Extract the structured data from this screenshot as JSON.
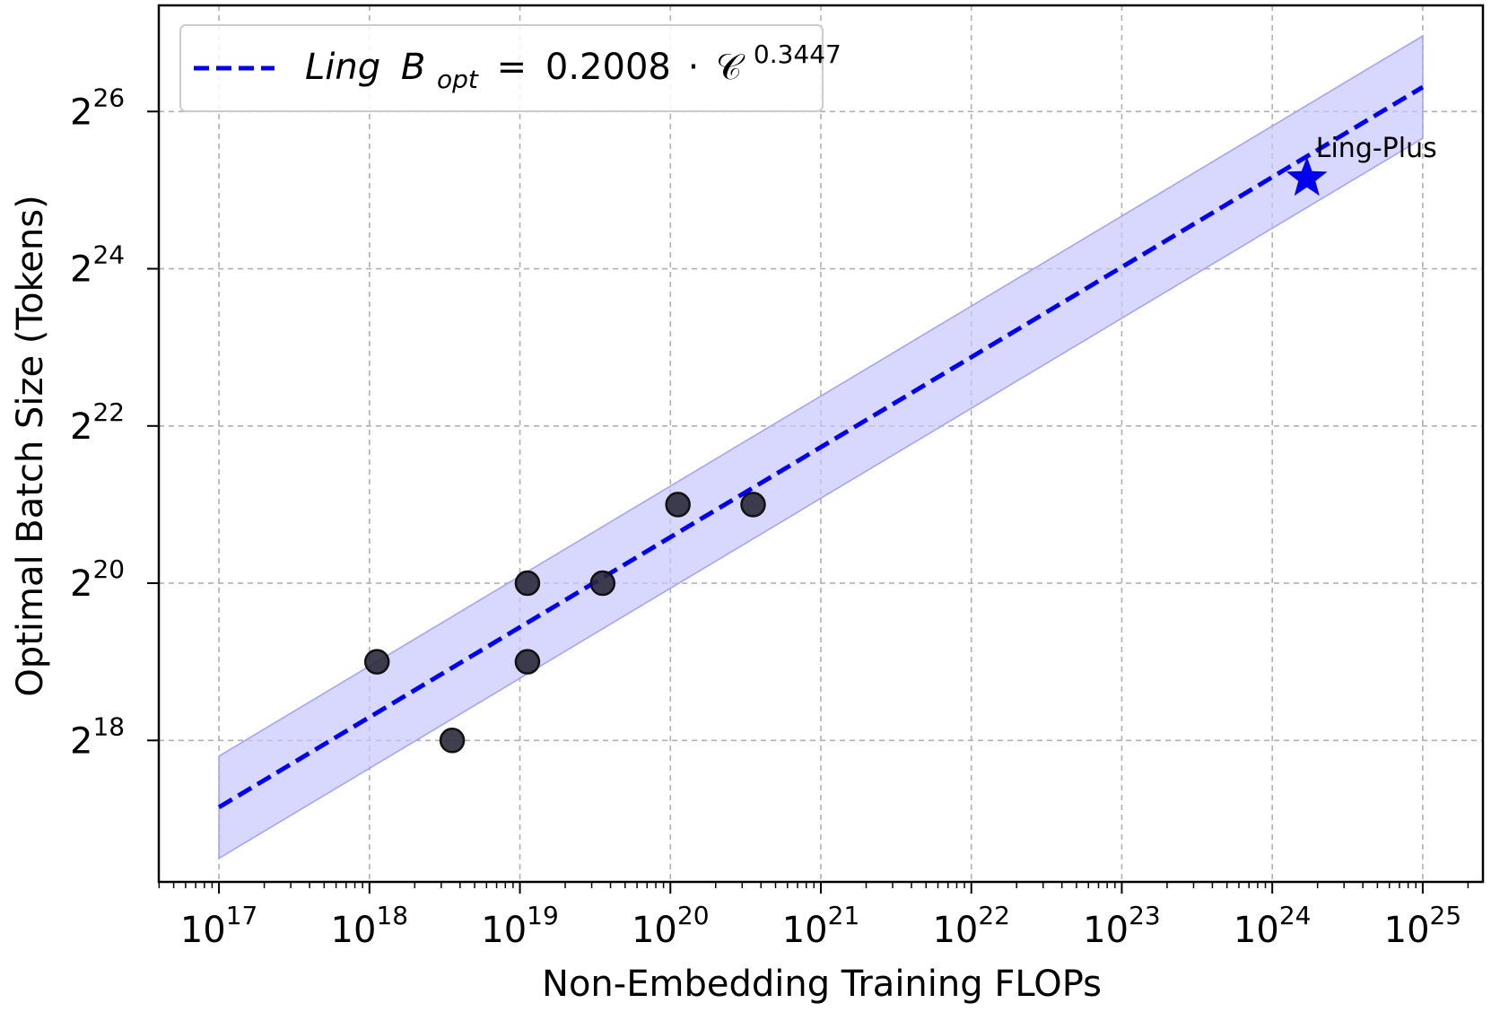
{
  "chart_data": {
    "type": "scatter",
    "title": "",
    "xlabel": "Non-Embedding Training FLOPs",
    "ylabel": "Optimal Batch Size (Tokens)",
    "x_scale": "log10",
    "y_scale": "log2",
    "xlim_exp": [
      16.6,
      25.4
    ],
    "ylim_exp": [
      16.2,
      27.35
    ],
    "x_ticks": [
      {
        "base": "10",
        "exp": "17",
        "value": 17
      },
      {
        "base": "10",
        "exp": "18",
        "value": 18
      },
      {
        "base": "10",
        "exp": "19",
        "value": 19
      },
      {
        "base": "10",
        "exp": "20",
        "value": 20
      },
      {
        "base": "10",
        "exp": "21",
        "value": 21
      },
      {
        "base": "10",
        "exp": "22",
        "value": 22
      },
      {
        "base": "10",
        "exp": "23",
        "value": 23
      },
      {
        "base": "10",
        "exp": "24",
        "value": 24
      },
      {
        "base": "10",
        "exp": "25",
        "value": 25
      }
    ],
    "y_ticks": [
      {
        "base": "2",
        "exp": "18",
        "value": 18
      },
      {
        "base": "2",
        "exp": "20",
        "value": 20
      },
      {
        "base": "2",
        "exp": "22",
        "value": 22
      },
      {
        "base": "2",
        "exp": "24",
        "value": 24
      },
      {
        "base": "2",
        "exp": "26",
        "value": 26
      }
    ],
    "grid": true,
    "points": [
      {
        "x_exp": 18.05,
        "y_exp": 19
      },
      {
        "x_exp": 18.55,
        "y_exp": 18
      },
      {
        "x_exp": 19.05,
        "y_exp": 20
      },
      {
        "x_exp": 19.05,
        "y_exp": 19
      },
      {
        "x_exp": 19.55,
        "y_exp": 20
      },
      {
        "x_exp": 20.05,
        "y_exp": 21
      },
      {
        "x_exp": 20.55,
        "y_exp": 21
      }
    ],
    "point_color": "#2a2a3a",
    "fit": {
      "coef": 0.2008,
      "exponent": 0.3447,
      "x_range_exp": [
        17,
        25
      ],
      "band_half_width_log2": 0.65,
      "color": "#0000ee",
      "band_color": "#c8c8ff"
    },
    "highlight": {
      "label": "Ling-Plus",
      "x_exp": 24.23,
      "y_exp": 25.15,
      "color": "#0000ee"
    },
    "legend": {
      "placement": "top-left",
      "name": "Ling",
      "var": "B",
      "sub": "opt",
      "coef_text": "0.2008",
      "dot": "·",
      "cvar": "𝒞",
      "exp_text": "0.3447"
    }
  }
}
